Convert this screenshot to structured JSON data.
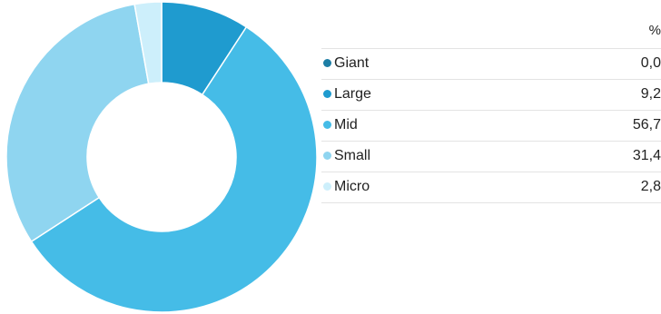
{
  "chart_data": {
    "type": "pie",
    "donut": true,
    "unit_header": "%",
    "categories": [
      "Giant",
      "Large",
      "Mid",
      "Small",
      "Micro"
    ],
    "values": [
      0.0,
      9.2,
      56.7,
      31.4,
      2.8
    ],
    "value_labels": [
      "0,0",
      "9,2",
      "56,7",
      "31,4",
      "2,8"
    ],
    "colors": [
      "#1d7ea5",
      "#1f9bcf",
      "#45bce7",
      "#8fd5f0",
      "#cdeffb"
    ],
    "legend_placement": "right"
  }
}
